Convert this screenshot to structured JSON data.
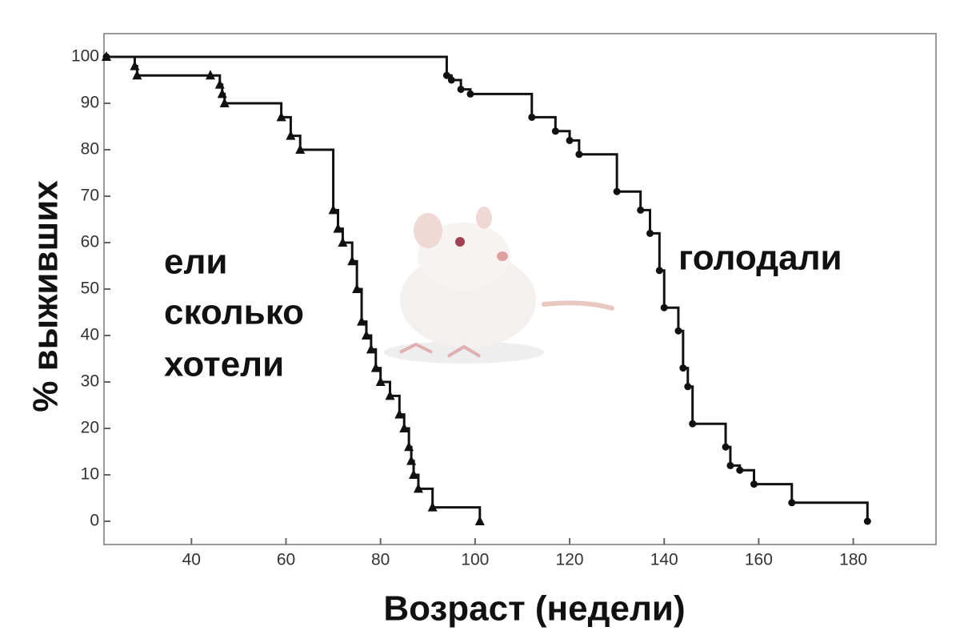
{
  "chart_data": {
    "type": "step",
    "xlabel": "Возраст (недели)",
    "ylabel": "% выживших",
    "xlim": [
      21.5,
      197.5
    ],
    "ylim": [
      -5,
      105
    ],
    "xticks": [
      40,
      60,
      80,
      100,
      120,
      140,
      160,
      180
    ],
    "yticks": [
      0,
      10,
      20,
      30,
      40,
      50,
      60,
      70,
      80,
      90,
      100
    ],
    "annotations": [
      "ели",
      "сколько",
      "хотели",
      "голодали"
    ],
    "series": [
      {
        "marker": "triangle",
        "color": "#111",
        "x": [
          22,
          28,
          28.5,
          44,
          46,
          46.5,
          47,
          59,
          61,
          63,
          70,
          71,
          72,
          74,
          75,
          76,
          77,
          78,
          79,
          80,
          82,
          84,
          85,
          86,
          86.5,
          87,
          88,
          91,
          101
        ],
        "values": [
          100,
          98,
          96,
          96,
          94,
          92,
          90,
          87,
          83,
          80,
          67,
          63,
          60,
          56,
          50,
          43,
          40,
          37,
          33,
          30,
          27,
          23,
          20,
          16,
          13,
          10,
          7,
          3,
          0
        ]
      },
      {
        "marker": "circle",
        "color": "#111",
        "x": [
          22,
          94,
          95,
          97,
          99,
          112,
          117,
          120,
          122,
          130,
          135,
          137,
          139,
          140,
          143,
          144,
          145,
          146,
          153,
          154,
          156,
          159,
          167,
          183
        ],
        "values": [
          100,
          96,
          95,
          93,
          92,
          87,
          84,
          82,
          79,
          71,
          67,
          62,
          54,
          46,
          41,
          33,
          29,
          21,
          16,
          12,
          11,
          8,
          4,
          0
        ]
      }
    ]
  }
}
